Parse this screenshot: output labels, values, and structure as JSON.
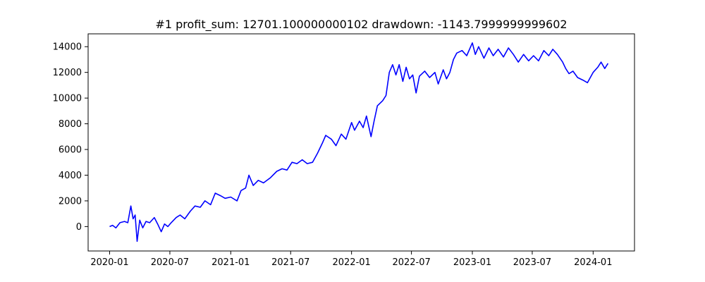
{
  "chart_data": {
    "type": "line",
    "title": "#1   profit_sum: 12701.100000000102 drawdown: -1143.7999999999602",
    "xlabel": "",
    "ylabel": "",
    "x_axis_type": "date",
    "xlim": [
      "2019-10-28",
      "2024-05-05"
    ],
    "ylim": [
      -1900,
      15000
    ],
    "x_ticks": [
      "2020-01",
      "2020-07",
      "2021-01",
      "2021-07",
      "2022-01",
      "2022-07",
      "2023-01",
      "2023-07",
      "2024-01"
    ],
    "y_ticks": [
      0,
      2000,
      4000,
      6000,
      8000,
      10000,
      12000,
      14000
    ],
    "grid": false,
    "legend": "none",
    "series": [
      {
        "color": "#0000ff",
        "points": [
          [
            "2020-01-01",
            0
          ],
          [
            "2020-01-10",
            100
          ],
          [
            "2020-01-20",
            -100
          ],
          [
            "2020-02-01",
            300
          ],
          [
            "2020-02-15",
            400
          ],
          [
            "2020-02-25",
            300
          ],
          [
            "2020-03-05",
            1600
          ],
          [
            "2020-03-12",
            600
          ],
          [
            "2020-03-18",
            900
          ],
          [
            "2020-03-24",
            -1150
          ],
          [
            "2020-04-01",
            500
          ],
          [
            "2020-04-10",
            -100
          ],
          [
            "2020-04-20",
            400
          ],
          [
            "2020-05-01",
            300
          ],
          [
            "2020-05-15",
            700
          ],
          [
            "2020-05-25",
            200
          ],
          [
            "2020-06-05",
            -400
          ],
          [
            "2020-06-15",
            200
          ],
          [
            "2020-06-25",
            0
          ],
          [
            "2020-07-05",
            300
          ],
          [
            "2020-07-20",
            700
          ],
          [
            "2020-08-01",
            900
          ],
          [
            "2020-08-15",
            600
          ],
          [
            "2020-09-01",
            1200
          ],
          [
            "2020-09-15",
            1600
          ],
          [
            "2020-10-01",
            1500
          ],
          [
            "2020-10-15",
            2000
          ],
          [
            "2020-11-01",
            1700
          ],
          [
            "2020-11-15",
            2600
          ],
          [
            "2020-12-01",
            2400
          ],
          [
            "2020-12-15",
            2200
          ],
          [
            "2021-01-01",
            2300
          ],
          [
            "2021-01-20",
            2000
          ],
          [
            "2021-02-01",
            2800
          ],
          [
            "2021-02-15",
            3000
          ],
          [
            "2021-02-25",
            4000
          ],
          [
            "2021-03-10",
            3200
          ],
          [
            "2021-03-25",
            3600
          ],
          [
            "2021-04-10",
            3400
          ],
          [
            "2021-05-01",
            3800
          ],
          [
            "2021-05-20",
            4300
          ],
          [
            "2021-06-05",
            4500
          ],
          [
            "2021-06-20",
            4400
          ],
          [
            "2021-07-05",
            5000
          ],
          [
            "2021-07-20",
            4900
          ],
          [
            "2021-08-05",
            5200
          ],
          [
            "2021-08-20",
            4900
          ],
          [
            "2021-09-05",
            5000
          ],
          [
            "2021-09-20",
            5700
          ],
          [
            "2021-10-05",
            6500
          ],
          [
            "2021-10-15",
            7100
          ],
          [
            "2021-11-01",
            6800
          ],
          [
            "2021-11-15",
            6300
          ],
          [
            "2021-12-01",
            7200
          ],
          [
            "2021-12-15",
            6800
          ],
          [
            "2022-01-01",
            8100
          ],
          [
            "2022-01-10",
            7500
          ],
          [
            "2022-01-25",
            8200
          ],
          [
            "2022-02-05",
            7700
          ],
          [
            "2022-02-15",
            8600
          ],
          [
            "2022-03-01",
            7000
          ],
          [
            "2022-03-10",
            8200
          ],
          [
            "2022-03-20",
            9400
          ],
          [
            "2022-04-05",
            9800
          ],
          [
            "2022-04-15",
            10200
          ],
          [
            "2022-04-25",
            12000
          ],
          [
            "2022-05-05",
            12600
          ],
          [
            "2022-05-15",
            11800
          ],
          [
            "2022-05-25",
            12600
          ],
          [
            "2022-06-05",
            11300
          ],
          [
            "2022-06-15",
            12400
          ],
          [
            "2022-06-25",
            11500
          ],
          [
            "2022-07-05",
            11800
          ],
          [
            "2022-07-15",
            10400
          ],
          [
            "2022-07-25",
            11700
          ],
          [
            "2022-08-10",
            12100
          ],
          [
            "2022-08-25",
            11600
          ],
          [
            "2022-09-10",
            12000
          ],
          [
            "2022-09-20",
            11100
          ],
          [
            "2022-10-05",
            12200
          ],
          [
            "2022-10-15",
            11500
          ],
          [
            "2022-10-25",
            12000
          ],
          [
            "2022-11-05",
            13000
          ],
          [
            "2022-11-15",
            13500
          ],
          [
            "2022-12-01",
            13700
          ],
          [
            "2022-12-15",
            13300
          ],
          [
            "2023-01-01",
            14300
          ],
          [
            "2023-01-10",
            13400
          ],
          [
            "2023-01-20",
            14000
          ],
          [
            "2023-02-05",
            13100
          ],
          [
            "2023-02-20",
            13900
          ],
          [
            "2023-03-05",
            13300
          ],
          [
            "2023-03-20",
            13800
          ],
          [
            "2023-04-05",
            13200
          ],
          [
            "2023-04-20",
            13900
          ],
          [
            "2023-05-05",
            13400
          ],
          [
            "2023-05-20",
            12800
          ],
          [
            "2023-06-05",
            13400
          ],
          [
            "2023-06-20",
            12900
          ],
          [
            "2023-07-05",
            13300
          ],
          [
            "2023-07-20",
            12900
          ],
          [
            "2023-08-05",
            13700
          ],
          [
            "2023-08-20",
            13300
          ],
          [
            "2023-09-01",
            13800
          ],
          [
            "2023-09-15",
            13400
          ],
          [
            "2023-10-01",
            12800
          ],
          [
            "2023-10-10",
            12300
          ],
          [
            "2023-10-20",
            11900
          ],
          [
            "2023-11-01",
            12100
          ],
          [
            "2023-11-15",
            11600
          ],
          [
            "2023-12-01",
            11400
          ],
          [
            "2023-12-15",
            11200
          ],
          [
            "2024-01-01",
            12000
          ],
          [
            "2024-01-15",
            12400
          ],
          [
            "2024-01-25",
            12800
          ],
          [
            "2024-02-05",
            12300
          ],
          [
            "2024-02-15",
            12701
          ]
        ]
      }
    ]
  }
}
